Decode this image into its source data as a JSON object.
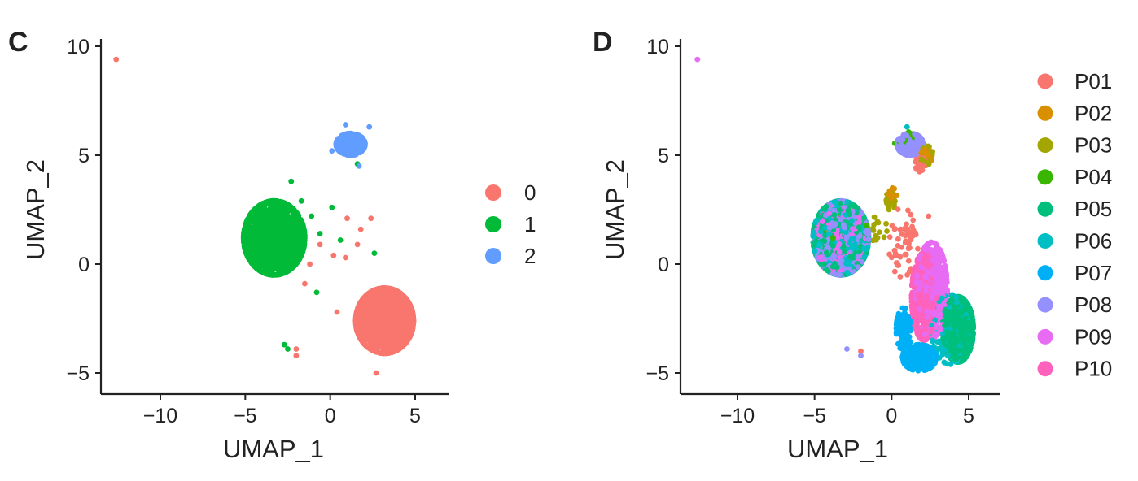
{
  "chart_data": [
    {
      "type": "scatter",
      "panel": "C",
      "title": "",
      "xlabel": "UMAP_1",
      "ylabel": "UMAP_2",
      "xlim": [
        -13.5,
        6.8
      ],
      "ylim": [
        -6,
        10
      ],
      "xticks": [
        -10,
        -5,
        0,
        5
      ],
      "yticks": [
        -5,
        0,
        5,
        10
      ],
      "grid": false,
      "legend_position": "right",
      "series": [
        {
          "name": "0",
          "color": "#F8766D",
          "count": 1700,
          "clusters": [
            [
              3.2,
              -2.6,
              1.7,
              1.5,
              1.0
            ]
          ],
          "points": [
            [
              -12.6,
              9.4
            ],
            [
              1.0,
              2.1
            ],
            [
              1.8,
              1.6
            ],
            [
              2.4,
              2.1
            ],
            [
              1.6,
              0.9
            ],
            [
              0.9,
              0.3
            ],
            [
              0.2,
              0.4
            ],
            [
              -0.6,
              0.9
            ],
            [
              -1.2,
              0.0
            ],
            [
              -1.5,
              -0.9
            ],
            [
              -2.0,
              -3.9
            ],
            [
              -2.0,
              -4.2
            ],
            [
              0.4,
              -2.2
            ],
            [
              1.3,
              5.6
            ],
            [
              2.7,
              -5.0
            ]
          ]
        },
        {
          "name": "1",
          "color": "#00BA38",
          "count": 1500,
          "clusters": [
            [
              -3.3,
              1.2,
              1.8,
              1.7,
              1.0
            ]
          ],
          "points": [
            [
              -2.3,
              3.8
            ],
            [
              -1.7,
              2.9
            ],
            [
              -1.1,
              2.2
            ],
            [
              -0.6,
              1.4
            ],
            [
              0.1,
              2.6
            ],
            [
              0.6,
              1.1
            ],
            [
              -0.8,
              -1.3
            ],
            [
              -2.7,
              -3.7
            ],
            [
              -2.5,
              -3.9
            ],
            [
              1.6,
              4.6
            ],
            [
              1.4,
              5.4
            ],
            [
              2.6,
              0.5
            ]
          ]
        },
        {
          "name": "2",
          "color": "#619CFF",
          "count": 360,
          "clusters": [
            [
              1.2,
              5.5,
              0.85,
              0.5,
              1.0
            ]
          ],
          "points": [
            [
              0.9,
              6.4
            ],
            [
              2.3,
              6.3
            ],
            [
              1.7,
              4.5
            ],
            [
              0.1,
              5.2
            ]
          ]
        }
      ]
    },
    {
      "type": "scatter",
      "panel": "D",
      "title": "",
      "xlabel": "UMAP_1",
      "ylabel": "UMAP_2",
      "xlim": [
        -13.5,
        6.8
      ],
      "ylim": [
        -6,
        10
      ],
      "xticks": [
        -10,
        -5,
        0,
        5
      ],
      "yticks": [
        -5,
        0,
        5,
        10
      ],
      "grid": false,
      "legend_position": "right",
      "series": [
        {
          "name": "P01",
          "color": "#F8766D",
          "count": 90,
          "clusters": [
            [
              0.7,
              1.0,
              0.9,
              1.6,
              0.6
            ],
            [
              1.9,
              4.6,
              0.35,
              0.45,
              0.4
            ]
          ],
          "points": [
            [
              -2.0,
              -4.0
            ],
            [
              2.4,
              2.2
            ],
            [
              1.7,
              0.7
            ]
          ]
        },
        {
          "name": "P02",
          "color": "#D89000",
          "count": 40,
          "clusters": [
            [
              2.2,
              5.0,
              0.45,
              0.5,
              0.7
            ],
            [
              0.0,
              3.0,
              0.5,
              0.5,
              0.3
            ]
          ],
          "points": []
        },
        {
          "name": "P03",
          "color": "#A3A500",
          "count": 80,
          "clusters": [
            [
              2.2,
              5.0,
              0.5,
              0.45,
              0.5
            ],
            [
              -0.1,
              2.9,
              0.4,
              0.4,
              0.3
            ],
            [
              -0.9,
              1.6,
              0.6,
              0.6,
              0.2
            ]
          ],
          "points": []
        },
        {
          "name": "P04",
          "color": "#39B600",
          "count": 60,
          "clusters": [
            [
              -3.3,
              1.2,
              1.8,
              1.6,
              0.5
            ],
            [
              1.0,
              5.6,
              0.8,
              0.5,
              0.5
            ]
          ],
          "points": []
        },
        {
          "name": "P05",
          "color": "#00BF7D",
          "count": 1200,
          "clusters": [
            [
              4.3,
              -3.0,
              1.0,
              1.5,
              0.55
            ],
            [
              -3.3,
              1.2,
              1.8,
              1.7,
              0.45
            ]
          ],
          "points": []
        },
        {
          "name": "P06",
          "color": "#00BFC4",
          "count": 650,
          "clusters": [
            [
              -3.3,
              1.2,
              1.8,
              1.7,
              0.7
            ],
            [
              3.8,
              -3.0,
              1.2,
              1.6,
              0.3
            ]
          ],
          "points": [
            [
              1.0,
              6.3
            ]
          ]
        },
        {
          "name": "P07",
          "color": "#00B0F6",
          "count": 360,
          "clusters": [
            [
              1.8,
              -4.3,
              1.1,
              0.6,
              0.7
            ],
            [
              0.8,
              -3.0,
              0.5,
              1.0,
              0.3
            ]
          ],
          "points": []
        },
        {
          "name": "P08",
          "color": "#9590FF",
          "count": 900,
          "clusters": [
            [
              -3.3,
              1.2,
              1.8,
              1.7,
              0.65
            ],
            [
              1.2,
              5.5,
              0.85,
              0.5,
              0.35
            ]
          ],
          "points": [
            [
              -2.9,
              -3.9
            ],
            [
              -2.0,
              -4.2
            ]
          ]
        },
        {
          "name": "P09",
          "color": "#E76BF3",
          "count": 900,
          "clusters": [
            [
              2.6,
              -1.2,
              1.0,
              2.2,
              0.7
            ],
            [
              -3.3,
              1.2,
              1.6,
              1.6,
              0.3
            ]
          ],
          "points": [
            [
              -12.6,
              9.4
            ]
          ]
        },
        {
          "name": "P10",
          "color": "#FF62BC",
          "count": 650,
          "clusters": [
            [
              2.1,
              -1.5,
              0.8,
              2.0,
              1.0
            ]
          ],
          "points": []
        }
      ]
    }
  ]
}
